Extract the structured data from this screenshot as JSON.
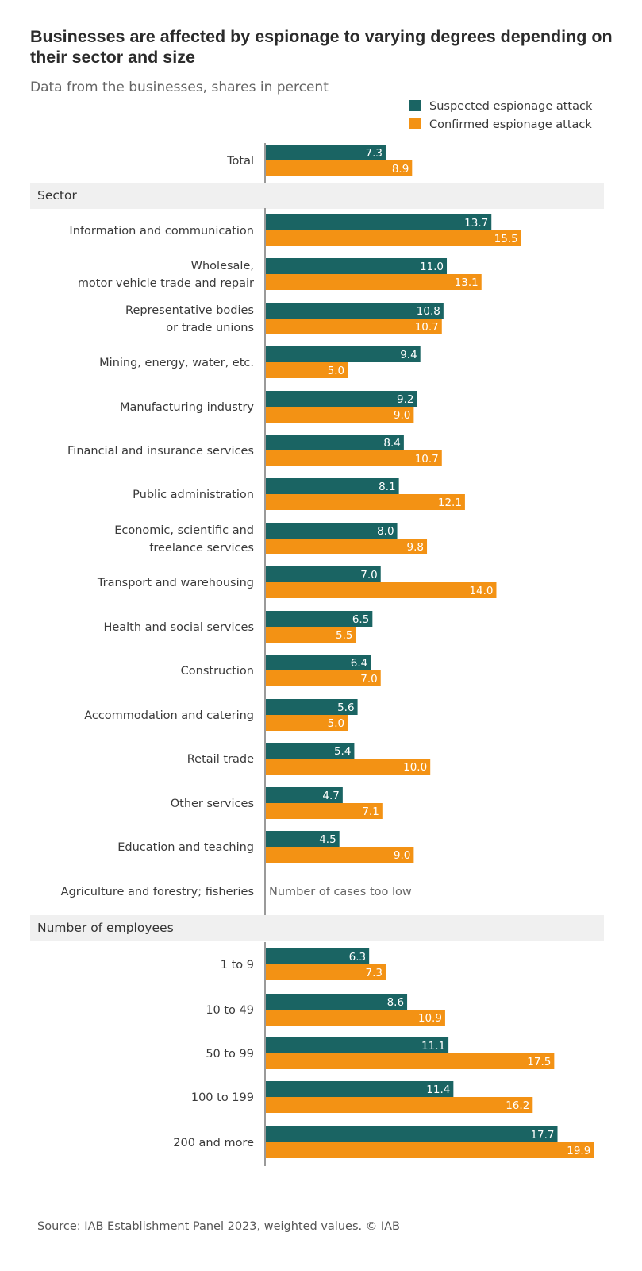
{
  "title": "Businesses are affected by espionage to varying degrees depending on their sector and size",
  "subtitle": "Data from the businesses, shares in percent",
  "source": "Source: IAB Establishment Panel 2023, weighted values. © IAB",
  "colors": {
    "suspected": "#1a6463",
    "confirmed": "#f39214",
    "section_bg": "#f0f0f0",
    "axis": "#9a9a9a"
  },
  "chart_data": {
    "type": "bar",
    "orientation": "horizontal",
    "legend_position": "top-right",
    "grid": false,
    "series": [
      {
        "name": "Suspected espionage attack",
        "color": "#1a6463"
      },
      {
        "name": "Confirmed espionage attack",
        "color": "#f39214"
      }
    ],
    "groups": [
      {
        "header": null,
        "rows": [
          {
            "label": [
              "Total"
            ],
            "values": [
              7.3,
              8.9
            ],
            "value_labels": [
              "7.3",
              "8.9"
            ]
          }
        ]
      },
      {
        "header": "Sector",
        "rows": [
          {
            "label": [
              "Information and communication"
            ],
            "values": [
              13.7,
              15.5
            ],
            "value_labels": [
              "13.7",
              "15.5"
            ]
          },
          {
            "label": [
              "Wholesale,",
              "motor vehicle trade and repair"
            ],
            "values": [
              11.0,
              13.1
            ],
            "value_labels": [
              "11.0",
              "13.1"
            ]
          },
          {
            "label": [
              "Representative bodies",
              "or trade unions"
            ],
            "values": [
              10.8,
              10.7
            ],
            "value_labels": [
              "10.8",
              "10.7"
            ]
          },
          {
            "label": [
              "Mining, energy, water, etc."
            ],
            "values": [
              9.4,
              5.0
            ],
            "value_labels": [
              "9.4",
              "5.0"
            ]
          },
          {
            "label": [
              "Manufacturing industry"
            ],
            "values": [
              9.2,
              9.0
            ],
            "value_labels": [
              "9.2",
              "9.0"
            ]
          },
          {
            "label": [
              "Financial and insurance services"
            ],
            "values": [
              8.4,
              10.7
            ],
            "value_labels": [
              "8.4",
              "10.7"
            ]
          },
          {
            "label": [
              "Public administration"
            ],
            "values": [
              8.1,
              12.1
            ],
            "value_labels": [
              "8.1",
              "12.1"
            ]
          },
          {
            "label": [
              "Economic, scientific and",
              "freelance services"
            ],
            "values": [
              8.0,
              9.8
            ],
            "value_labels": [
              "8.0",
              "9.8"
            ]
          },
          {
            "label": [
              "Transport and warehousing"
            ],
            "values": [
              7.0,
              14.0
            ],
            "value_labels": [
              "7.0",
              "14.0"
            ]
          },
          {
            "label": [
              "Health and social services"
            ],
            "values": [
              6.5,
              5.5
            ],
            "value_labels": [
              "6.5",
              "5.5"
            ]
          },
          {
            "label": [
              "Construction"
            ],
            "values": [
              6.4,
              7.0
            ],
            "value_labels": [
              "6.4",
              "7.0"
            ]
          },
          {
            "label": [
              "Accommodation and catering"
            ],
            "values": [
              5.6,
              5.0
            ],
            "value_labels": [
              "5.6",
              "5.0"
            ]
          },
          {
            "label": [
              "Retail trade"
            ],
            "values": [
              5.4,
              10.0
            ],
            "value_labels": [
              "5.4",
              "10.0"
            ]
          },
          {
            "label": [
              "Other services"
            ],
            "values": [
              4.7,
              7.1
            ],
            "value_labels": [
              "4.7",
              "7.1"
            ]
          },
          {
            "label": [
              "Education and teaching"
            ],
            "values": [
              4.5,
              9.0
            ],
            "value_labels": [
              "4.5",
              "9.0"
            ]
          },
          {
            "label": [
              "Agriculture and forestry; fisheries"
            ],
            "values": null,
            "note": "Number of cases too low"
          }
        ]
      },
      {
        "header": "Number of employees",
        "rows": [
          {
            "label": [
              "1 to 9"
            ],
            "values": [
              6.3,
              7.3
            ],
            "value_labels": [
              "6.3",
              "7.3"
            ]
          },
          {
            "label": [
              "10 to 49"
            ],
            "values": [
              8.6,
              10.9
            ],
            "value_labels": [
              "8.6",
              "10.9"
            ]
          },
          {
            "label": [
              "50 to 99"
            ],
            "values": [
              11.1,
              17.5
            ],
            "value_labels": [
              "11.1",
              "17.5"
            ]
          },
          {
            "label": [
              "100 to 199"
            ],
            "values": [
              11.4,
              16.2
            ],
            "value_labels": [
              "11.4",
              "16.2"
            ]
          },
          {
            "label": [
              "200 and more"
            ],
            "values": [
              17.7,
              19.9
            ],
            "value_labels": [
              "17.7",
              "19.9"
            ]
          }
        ]
      }
    ]
  }
}
